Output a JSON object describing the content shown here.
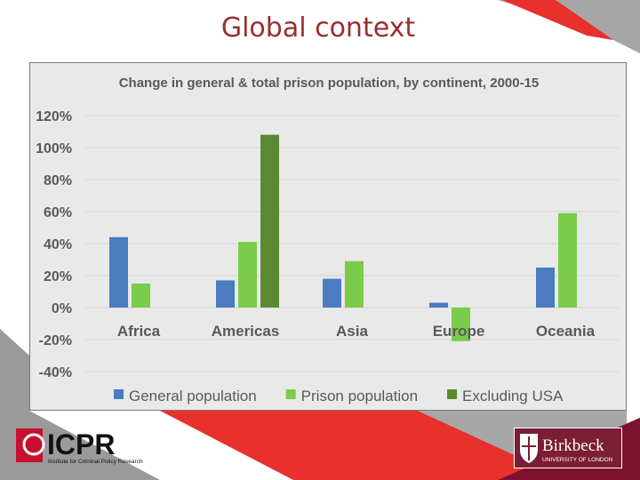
{
  "slide": {
    "title": "Global context"
  },
  "colors": {
    "title": "#9b2d30",
    "general": "#4a7cc0",
    "prison": "#7acc4a",
    "excl_usa": "#5b8a32",
    "red_band": "#e8302c",
    "grey_band": "#a6a6a6",
    "maroon_band": "#7d1230"
  },
  "chart_data": {
    "type": "bar",
    "title": "Change in general & total prison population, by continent, 2000-15",
    "categories": [
      "Africa",
      "Americas",
      "Asia",
      "Europe",
      "Oceania"
    ],
    "series": [
      {
        "name": "General population",
        "values": [
          44,
          17,
          18,
          3,
          25
        ],
        "color": "#4a7cc0"
      },
      {
        "name": "Prison population",
        "values": [
          15,
          41,
          29,
          -21,
          59
        ],
        "color": "#7acc4a"
      },
      {
        "name": "Excluding USA",
        "values": [
          null,
          108,
          null,
          null,
          null
        ],
        "color": "#5b8a32"
      }
    ],
    "ylim": [
      -40,
      120
    ],
    "yticks": [
      "120%",
      "100%",
      "80%",
      "60%",
      "40%",
      "20%",
      "0%",
      "-20%",
      "-40%"
    ],
    "xlabel": "",
    "ylabel": "",
    "grid": true,
    "legend": "bottom"
  },
  "logos": {
    "icpr": {
      "name": "ICPR",
      "tagline": "Institute for Criminal Policy Research",
      "icon": "icpr-emblem-icon"
    },
    "birkbeck": {
      "name": "Birkbeck",
      "tagline": "UNIVERSITY OF LONDON",
      "icon": "shield-crest-icon"
    }
  }
}
